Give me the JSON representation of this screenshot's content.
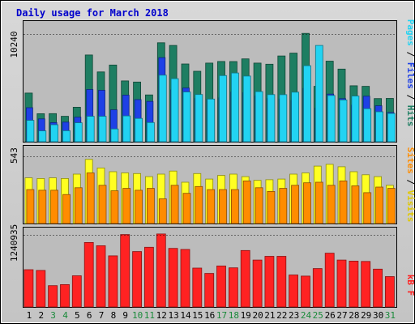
{
  "chart_data": [
    {
      "type": "bar",
      "title": "Daily usage for March 2018",
      "categories": [
        "1",
        "2",
        "3",
        "4",
        "5",
        "6",
        "7",
        "8",
        "9",
        "10",
        "11",
        "12",
        "13",
        "14",
        "15",
        "16",
        "17",
        "18",
        "19",
        "20",
        "21",
        "22",
        "23",
        "24",
        "25",
        "26",
        "27",
        "28",
        "29",
        "30",
        "31"
      ],
      "weekend_days": [
        "3",
        "4",
        "10",
        "11",
        "17",
        "18",
        "24",
        "25",
        "31"
      ],
      "ytick": "10240",
      "ylabel_parts": [
        "Pages",
        "Files",
        "Hits"
      ],
      "ylim": [
        0,
        11800
      ],
      "series": [
        {
          "name": "Hits",
          "color": "#1e7e62",
          "values": [
            4760,
            2740,
            2750,
            2490,
            3370,
            8480,
            6830,
            7500,
            5950,
            5840,
            4580,
            9680,
            9420,
            7600,
            6890,
            7690,
            7850,
            7840,
            8100,
            7690,
            7580,
            8390,
            8660,
            10600,
            5420,
            7880,
            7100,
            5470,
            5420,
            4220,
            4240
          ]
        },
        {
          "name": "Files",
          "color": "#1e40e6",
          "values": [
            3330,
            2230,
            1870,
            1920,
            2400,
            5110,
            5030,
            3120,
            4550,
            4120,
            3940,
            8220,
            5080,
            5250,
            4230,
            4140,
            4290,
            4860,
            4800,
            4490,
            4220,
            4180,
            4040,
            5210,
            3280,
            4660,
            4210,
            3580,
            4450,
            3520,
            2860
          ]
        },
        {
          "name": "Pages",
          "color": "#22d3f2",
          "values": [
            2090,
            1060,
            1660,
            1080,
            1850,
            2490,
            2490,
            1250,
            2530,
            2280,
            1880,
            6510,
            6170,
            4860,
            4620,
            4170,
            6470,
            6720,
            6420,
            4900,
            4610,
            4600,
            4850,
            7440,
            9420,
            4520,
            4090,
            4470,
            3230,
            2930,
            2760
          ]
        }
      ]
    },
    {
      "type": "bar",
      "ytick": "543",
      "ylabel_parts": [
        "Sites",
        "Visits"
      ],
      "ylim": [
        0,
        630
      ],
      "series": [
        {
          "name": "Visits",
          "color": "#ffff22",
          "values": [
            370,
            365,
            370,
            365,
            400,
            520,
            450,
            420,
            410,
            405,
            380,
            400,
            425,
            335,
            405,
            360,
            390,
            400,
            380,
            350,
            355,
            360,
            400,
            410,
            465,
            480,
            460,
            420,
            395,
            380,
            310
          ]
        },
        {
          "name": "Sites",
          "color": "#ff8c00",
          "values": [
            275,
            270,
            270,
            235,
            290,
            410,
            310,
            265,
            285,
            270,
            285,
            200,
            310,
            245,
            300,
            275,
            275,
            275,
            345,
            290,
            260,
            285,
            310,
            330,
            335,
            310,
            345,
            305,
            250,
            295,
            285
          ]
        }
      ]
    },
    {
      "type": "bar",
      "ytick": "1240935",
      "ylabel_parts": [
        "kB F"
      ],
      "ylim": [
        0,
        1490000
      ],
      "series": [
        {
          "name": "kB F",
          "color": "#ff2222",
          "values": [
            700000,
            685000,
            400000,
            420000,
            585000,
            1210000,
            1150000,
            960000,
            1360000,
            1040000,
            1120000,
            1370000,
            1100000,
            1080000,
            730000,
            630000,
            770000,
            735000,
            1060000,
            880000,
            950000,
            950000,
            600000,
            580000,
            720000,
            1010000,
            880000,
            860000,
            855000,
            710000,
            570000
          ]
        }
      ]
    }
  ]
}
